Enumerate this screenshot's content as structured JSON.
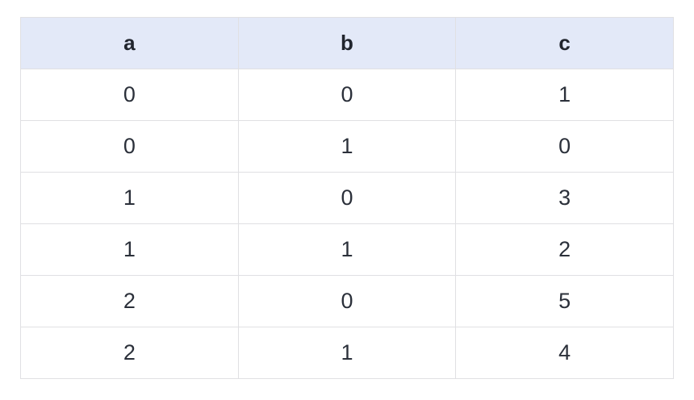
{
  "chart_data": {
    "type": "table",
    "columns": [
      "a",
      "b",
      "c"
    ],
    "rows": [
      [
        0,
        0,
        1
      ],
      [
        0,
        1,
        0
      ],
      [
        1,
        0,
        3
      ],
      [
        1,
        1,
        2
      ],
      [
        2,
        0,
        5
      ],
      [
        2,
        1,
        4
      ]
    ],
    "layout": {
      "grid": true,
      "header_position": "top",
      "text_align": "center"
    }
  },
  "colors": {
    "header_bg": "#e3e9f8",
    "border": "#e0e0e3",
    "header_text": "#21252e",
    "cell_text": "#2b303a",
    "page_bg": "#ffffff"
  }
}
